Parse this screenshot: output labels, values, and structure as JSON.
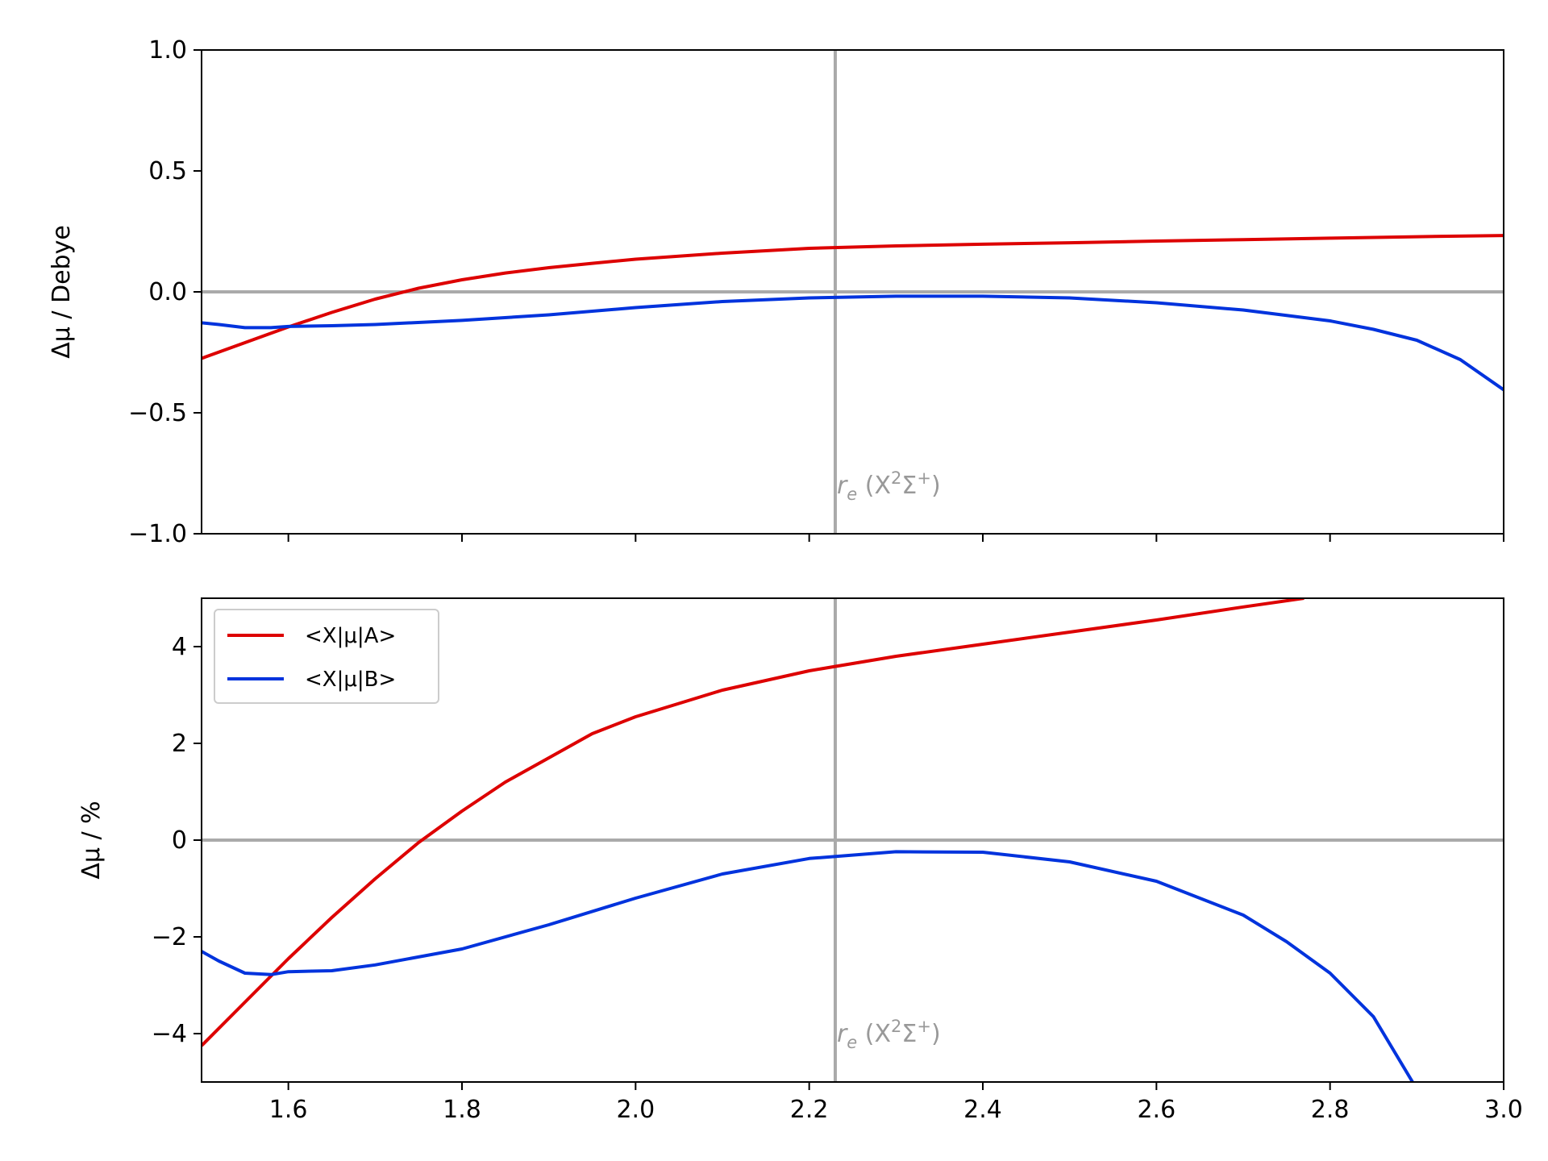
{
  "chart_data": [
    {
      "type": "line",
      "ylabel": "Δμ / Debye",
      "xlim": [
        1.5,
        3.0
      ],
      "ylim": [
        -1.0,
        1.0
      ],
      "yticks": [
        -1.0,
        -0.5,
        0.0,
        0.5,
        1.0
      ],
      "ytick_labels": [
        "−1.0",
        "−0.5",
        "0.0",
        "0.5",
        "1.0"
      ],
      "xticks": [
        1.6,
        1.8,
        2.0,
        2.2,
        2.4,
        2.6,
        2.8,
        3.0
      ],
      "xtick_labels": [
        "",
        "",
        "",
        "",
        "",
        "",
        "",
        ""
      ],
      "hline": 0.0,
      "vline": 2.23,
      "annotation": {
        "base": "r",
        "sub": "e",
        "text": " (X",
        "sup1": "2",
        "mid": "Σ",
        "sup2": "+",
        "close": ")",
        "x": 2.23,
        "y": -0.8
      },
      "grid": false,
      "series": [
        {
          "name": "<X|μ|A>",
          "color": "#dd0000",
          "x": [
            1.5,
            1.55,
            1.6,
            1.65,
            1.7,
            1.75,
            1.8,
            1.85,
            1.9,
            1.95,
            2.0,
            2.1,
            2.2,
            2.3,
            2.4,
            2.5,
            2.6,
            2.7,
            2.8,
            2.9,
            3.0
          ],
          "y": [
            -0.275,
            -0.21,
            -0.145,
            -0.085,
            -0.03,
            0.015,
            0.05,
            0.078,
            0.1,
            0.118,
            0.135,
            0.16,
            0.18,
            0.19,
            0.197,
            0.203,
            0.21,
            0.216,
            0.222,
            0.228,
            0.233
          ]
        },
        {
          "name": "<X|μ|B>",
          "color": "#0033dd",
          "x": [
            1.5,
            1.52,
            1.55,
            1.58,
            1.6,
            1.65,
            1.7,
            1.8,
            1.9,
            2.0,
            2.1,
            2.2,
            2.3,
            2.4,
            2.5,
            2.6,
            2.7,
            2.8,
            2.85,
            2.9,
            2.95,
            3.0
          ],
          "y": [
            -0.128,
            -0.135,
            -0.148,
            -0.148,
            -0.143,
            -0.14,
            -0.135,
            -0.118,
            -0.095,
            -0.065,
            -0.04,
            -0.025,
            -0.018,
            -0.018,
            -0.025,
            -0.045,
            -0.075,
            -0.12,
            -0.155,
            -0.2,
            -0.28,
            -0.405
          ]
        }
      ]
    },
    {
      "type": "line",
      "ylabel": "Δμ / %",
      "xlim": [
        1.5,
        3.0
      ],
      "ylim": [
        -5,
        5
      ],
      "yticks": [
        -4,
        -2,
        0,
        2,
        4
      ],
      "ytick_labels": [
        "−4",
        "−2",
        "0",
        "2",
        "4"
      ],
      "xticks": [
        1.6,
        1.8,
        2.0,
        2.2,
        2.4,
        2.6,
        2.8,
        3.0
      ],
      "xtick_labels": [
        "1.6",
        "1.8",
        "2.0",
        "2.2",
        "2.4",
        "2.6",
        "2.8",
        "3.0"
      ],
      "hline": 0,
      "vline": 2.23,
      "annotation": {
        "base": "r",
        "sub": "e",
        "text": " (X",
        "sup1": "2",
        "mid": "Σ",
        "sup2": "+",
        "close": ")",
        "x": 2.23,
        "y": -4.0
      },
      "grid": false,
      "legend": {
        "position": "upper-left"
      },
      "series": [
        {
          "name": "<X|μ|A>",
          "color": "#dd0000",
          "x": [
            1.5,
            1.55,
            1.6,
            1.65,
            1.7,
            1.75,
            1.8,
            1.85,
            1.9,
            1.95,
            2.0,
            2.1,
            2.2,
            2.3,
            2.4,
            2.5,
            2.6,
            2.7,
            2.77
          ],
          "y": [
            -4.25,
            -3.35,
            -2.45,
            -1.6,
            -0.8,
            -0.05,
            0.6,
            1.2,
            1.7,
            2.2,
            2.55,
            3.1,
            3.5,
            3.8,
            4.05,
            4.3,
            4.55,
            4.82,
            5.0
          ]
        },
        {
          "name": "<X|μ|B>",
          "color": "#0033dd",
          "x": [
            1.5,
            1.52,
            1.55,
            1.58,
            1.6,
            1.65,
            1.7,
            1.8,
            1.9,
            2.0,
            2.1,
            2.2,
            2.3,
            2.4,
            2.5,
            2.6,
            2.7,
            2.75,
            2.8,
            2.85,
            2.895
          ],
          "y": [
            -2.3,
            -2.5,
            -2.75,
            -2.78,
            -2.72,
            -2.7,
            -2.58,
            -2.25,
            -1.75,
            -1.2,
            -0.7,
            -0.38,
            -0.24,
            -0.25,
            -0.45,
            -0.85,
            -1.55,
            -2.1,
            -2.75,
            -3.65,
            -5.0
          ]
        }
      ]
    }
  ]
}
